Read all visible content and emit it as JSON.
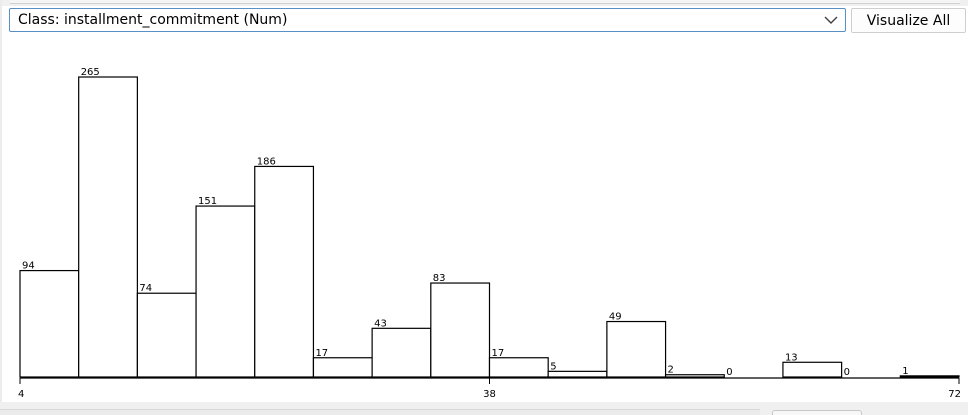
{
  "class_selector": {
    "value": "Class: installment_commitment (Num)",
    "chevron_icon": "chevron-down-icon"
  },
  "visualize_all": {
    "label": "Visualize All"
  },
  "chart_data": {
    "type": "bar",
    "values": [
      94,
      265,
      74,
      151,
      186,
      17,
      43,
      83,
      17,
      5,
      49,
      2,
      0,
      13,
      0,
      1
    ],
    "x_tick_labels": [
      "4",
      "38",
      "72"
    ],
    "ylim": [
      0,
      265
    ],
    "bar_color": "#ffffff",
    "bar_edge_color": "#000000",
    "grid": false,
    "legend": "none"
  }
}
